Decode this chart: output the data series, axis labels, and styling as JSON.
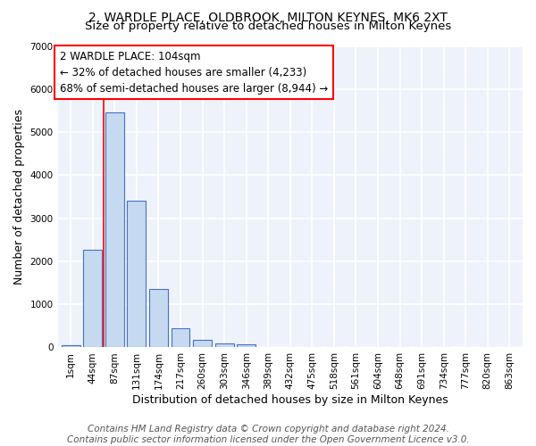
{
  "title": "2, WARDLE PLACE, OLDBROOK, MILTON KEYNES, MK6 2XT",
  "subtitle": "Size of property relative to detached houses in Milton Keynes",
  "xlabel": "Distribution of detached houses by size in Milton Keynes",
  "ylabel": "Number of detached properties",
  "footer_line1": "Contains HM Land Registry data © Crown copyright and database right 2024.",
  "footer_line2": "Contains public sector information licensed under the Open Government Licence v3.0.",
  "bar_labels": [
    "1sqm",
    "44sqm",
    "87sqm",
    "131sqm",
    "174sqm",
    "217sqm",
    "260sqm",
    "303sqm",
    "346sqm",
    "389sqm",
    "432sqm",
    "475sqm",
    "518sqm",
    "561sqm",
    "604sqm",
    "648sqm",
    "691sqm",
    "734sqm",
    "777sqm",
    "820sqm",
    "863sqm"
  ],
  "bar_values": [
    60,
    2270,
    5450,
    3400,
    1350,
    450,
    175,
    100,
    65,
    0,
    0,
    0,
    0,
    0,
    0,
    0,
    0,
    0,
    0,
    0,
    0
  ],
  "bar_color": "#c5d9f1",
  "bar_edge_color": "#4472c4",
  "annotation_text": "2 WARDLE PLACE: 104sqm\n← 32% of detached houses are smaller (4,233)\n68% of semi-detached houses are larger (8,944) →",
  "vline_x": 1.5,
  "vline_color": "red",
  "ylim": [
    0,
    7000
  ],
  "yticks": [
    0,
    1000,
    2000,
    3000,
    4000,
    5000,
    6000,
    7000
  ],
  "background_color": "#eef2fa",
  "grid_color": "#ffffff",
  "annotation_box_color": "#ffffff",
  "annotation_box_edge": "red",
  "title_fontsize": 10,
  "subtitle_fontsize": 9.5,
  "footer_fontsize": 7.5,
  "axis_label_fontsize": 9,
  "tick_fontsize": 7.5,
  "annotation_fontsize": 8.5
}
